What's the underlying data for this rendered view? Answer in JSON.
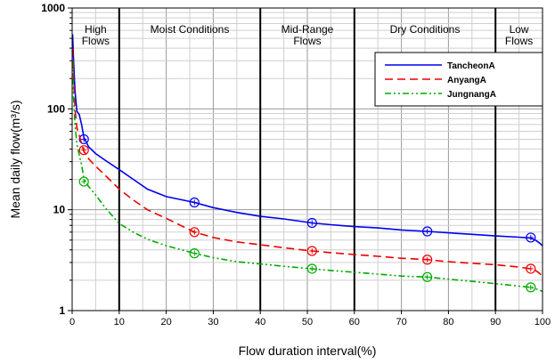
{
  "chart_data": {
    "type": "line",
    "title": "",
    "xlabel": "Flow duration interval(%)",
    "ylabel": "Mean daily flow(m³/s)",
    "xlim": [
      0,
      100
    ],
    "ylim": [
      1,
      1000
    ],
    "yscale": "log",
    "grid": true,
    "legend_position": "top-right",
    "x_ticks": [
      "0",
      "10",
      "20",
      "30",
      "40",
      "50",
      "60",
      "70",
      "80",
      "90",
      "100"
    ],
    "y_ticks": [
      "1",
      "10",
      "100",
      "1000"
    ],
    "regions": [
      {
        "label_lines": [
          "High",
          "Flows"
        ],
        "from": 0,
        "to": 10
      },
      {
        "label_lines": [
          "Moist Conditions"
        ],
        "from": 10,
        "to": 40
      },
      {
        "label_lines": [
          "Mid-Range",
          "Flows"
        ],
        "from": 40,
        "to": 60
      },
      {
        "label_lines": [
          "Dry Conditions"
        ],
        "from": 60,
        "to": 90
      },
      {
        "label_lines": [
          "Low",
          "Flows"
        ],
        "from": 90,
        "to": 100
      }
    ],
    "boundaries": [
      10,
      40,
      60,
      90
    ],
    "series": [
      {
        "name": "TancheonA",
        "color": "#0000ee",
        "dash": "solid",
        "points": [
          [
            0.1,
            550
          ],
          [
            0.3,
            300
          ],
          [
            0.6,
            150
          ],
          [
            1,
            95
          ],
          [
            1.5,
            88
          ],
          [
            2,
            70
          ],
          [
            2.5,
            52
          ],
          [
            3.5,
            42
          ],
          [
            5,
            36
          ],
          [
            7,
            31
          ],
          [
            10,
            25
          ],
          [
            13,
            20
          ],
          [
            16,
            16
          ],
          [
            20,
            13.5
          ],
          [
            26,
            11.8
          ],
          [
            30,
            10.5
          ],
          [
            35,
            9.4
          ],
          [
            40,
            8.6
          ],
          [
            45,
            8.1
          ],
          [
            51,
            7.4
          ],
          [
            55,
            7.1
          ],
          [
            60,
            6.8
          ],
          [
            65,
            6.6
          ],
          [
            70,
            6.3
          ],
          [
            75.5,
            6.1
          ],
          [
            80,
            5.9
          ],
          [
            85,
            5.7
          ],
          [
            90,
            5.5
          ],
          [
            95,
            5.35
          ],
          [
            97.5,
            5.25
          ],
          [
            98.5,
            5.0
          ],
          [
            99.3,
            4.7
          ],
          [
            100,
            4.4
          ]
        ],
        "markers": [
          [
            2.5,
            50
          ],
          [
            26,
            11.8
          ],
          [
            51,
            7.4
          ],
          [
            75.5,
            6.1
          ],
          [
            97.5,
            5.3
          ]
        ]
      },
      {
        "name": "AnyangA",
        "color": "#ee0000",
        "dash": "dashed",
        "points": [
          [
            0.1,
            400
          ],
          [
            0.3,
            200
          ],
          [
            0.6,
            100
          ],
          [
            1,
            65
          ],
          [
            1.5,
            55
          ],
          [
            2,
            45
          ],
          [
            2.5,
            38
          ],
          [
            3.5,
            32
          ],
          [
            5,
            27
          ],
          [
            7,
            22
          ],
          [
            10,
            16
          ],
          [
            13,
            12.5
          ],
          [
            16,
            10
          ],
          [
            20,
            8.2
          ],
          [
            26,
            6.0
          ],
          [
            30,
            5.3
          ],
          [
            35,
            4.8
          ],
          [
            40,
            4.5
          ],
          [
            45,
            4.2
          ],
          [
            51,
            3.9
          ],
          [
            55,
            3.75
          ],
          [
            60,
            3.6
          ],
          [
            65,
            3.45
          ],
          [
            70,
            3.3
          ],
          [
            75.5,
            3.2
          ],
          [
            80,
            3.05
          ],
          [
            85,
            2.95
          ],
          [
            90,
            2.85
          ],
          [
            95,
            2.7
          ],
          [
            97.5,
            2.6
          ],
          [
            98.5,
            2.5
          ],
          [
            99.3,
            2.35
          ],
          [
            100,
            2.2
          ]
        ],
        "markers": [
          [
            2.5,
            39
          ],
          [
            26,
            6.0
          ],
          [
            51,
            3.9
          ],
          [
            75.5,
            3.2
          ],
          [
            97.5,
            2.6
          ]
        ]
      },
      {
        "name": "JungnangA",
        "color": "#00aa00",
        "dash": "dash-dot-dot",
        "points": [
          [
            0.1,
            300
          ],
          [
            0.3,
            130
          ],
          [
            0.6,
            70
          ],
          [
            1,
            45
          ],
          [
            1.5,
            35
          ],
          [
            2,
            28
          ],
          [
            2.5,
            20
          ],
          [
            3.5,
            17
          ],
          [
            5,
            14
          ],
          [
            7,
            10.5
          ],
          [
            10,
            7.3
          ],
          [
            13,
            6.0
          ],
          [
            16,
            5.1
          ],
          [
            20,
            4.4
          ],
          [
            26,
            3.7
          ],
          [
            30,
            3.35
          ],
          [
            35,
            3.05
          ],
          [
            40,
            2.9
          ],
          [
            45,
            2.75
          ],
          [
            51,
            2.6
          ],
          [
            55,
            2.5
          ],
          [
            60,
            2.4
          ],
          [
            65,
            2.3
          ],
          [
            70,
            2.2
          ],
          [
            75.5,
            2.15
          ],
          [
            80,
            2.05
          ],
          [
            85,
            1.95
          ],
          [
            90,
            1.85
          ],
          [
            95,
            1.75
          ],
          [
            97.5,
            1.7
          ],
          [
            98.5,
            1.65
          ],
          [
            99.3,
            1.6
          ],
          [
            100,
            1.55
          ]
        ],
        "markers": [
          [
            2.5,
            19
          ],
          [
            26,
            3.7
          ],
          [
            51,
            2.6
          ],
          [
            75.5,
            2.15
          ],
          [
            97.5,
            1.7
          ]
        ]
      }
    ]
  }
}
